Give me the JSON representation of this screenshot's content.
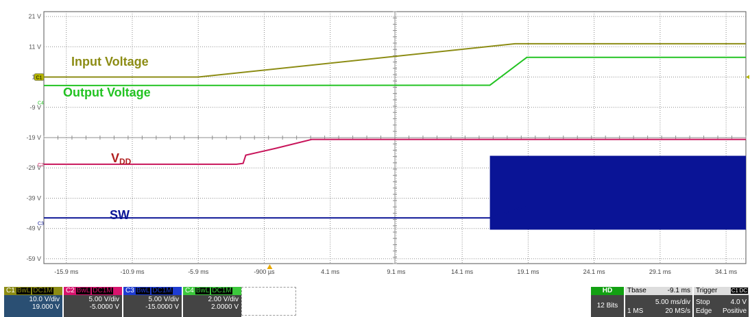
{
  "chart_data": {
    "type": "line",
    "y_ticks": [
      "21 V",
      "11 V",
      "1 V",
      "-9 V",
      "-19 V",
      "-29 V",
      "-39 V",
      "-49 V",
      "-59 V"
    ],
    "y_tick_values": [
      21,
      11,
      1,
      -9,
      -19,
      -29,
      -39,
      -49,
      -59
    ],
    "x_ticks": [
      "-15.9 ms",
      "-10.9 ms",
      "-5.9 ms",
      "-900 µs",
      "4.1 ms",
      "9.1 ms",
      "14.1 ms",
      "19.1 ms",
      "24.1 ms",
      "29.1 ms",
      "34.1 ms"
    ],
    "x_tick_values": [
      -15.9,
      -10.9,
      -5.9,
      -0.9,
      4.1,
      9.1,
      14.1,
      19.1,
      24.1,
      29.1,
      34.1
    ],
    "xlim": [
      -17.6,
      35.6
    ],
    "ylim": [
      -60.6,
      22.6
    ],
    "grid": true,
    "series": [
      {
        "name": "Input Voltage",
        "color": "#8c8c14",
        "x": [
          -17.6,
          -5.9,
          18.1,
          35.6
        ],
        "y": [
          1.0,
          1.0,
          12.0,
          12.0
        ]
      },
      {
        "name": "Output Voltage",
        "color": "#22c322",
        "x": [
          -17.6,
          16.2,
          19.0,
          35.6
        ],
        "y": [
          -1.8,
          -1.7,
          7.5,
          7.5
        ]
      },
      {
        "name": "VDD",
        "color": "#c8145a",
        "x": [
          -17.6,
          -3.0,
          -2.5,
          -2.3,
          0.0,
          2.7,
          35.6
        ],
        "y": [
          -27.8,
          -27.8,
          -27.5,
          -24.8,
          -22.5,
          -19.6,
          -19.6
        ]
      },
      {
        "name": "SW",
        "color": "#0a1496",
        "x": [
          -17.6,
          16.2,
          18.9
        ],
        "y": [
          -45.5,
          -45.5,
          -41.7
        ]
      }
    ],
    "sw_envelope": {
      "x": [
        16.2,
        35.6
      ],
      "y_high": -25.0,
      "y_low": -49.4
    },
    "annotations": [
      {
        "text": "Input Voltage",
        "color": "#8c8c14"
      },
      {
        "text": "Output Voltage",
        "color": "#22c322"
      },
      {
        "text": "V",
        "sub": "DD",
        "color": "#b01e1e"
      },
      {
        "text": "SW",
        "color": "#0a1496"
      }
    ]
  },
  "markers": {
    "c1": "C1",
    "c2": "C2",
    "c3": "C3",
    "c4": "C4"
  },
  "channels": [
    {
      "name": "C1",
      "bw": "BwL",
      "dc": "DC1M",
      "vdiv": "10.0 V/div",
      "offset": "19.000 V",
      "color": "#8c8c14",
      "bodycolor": "#2a4f73"
    },
    {
      "name": "C2",
      "bw": "BwL",
      "dc": "DC1M",
      "vdiv": "5.00 V/div",
      "offset": "-5.0000 V",
      "color": "#d8146e",
      "bodycolor": "#444444"
    },
    {
      "name": "C3",
      "bw": "BwL",
      "dc": "DC1M",
      "vdiv": "5.00 V/div",
      "offset": "-15.0000 V",
      "color": "#1e3cd2",
      "bodycolor": "#444444"
    },
    {
      "name": "C4",
      "bw": "BwL",
      "dc": "DC1M",
      "vdiv": "2.00 V/div",
      "offset": "2.0000 V",
      "color": "#3cc83c",
      "bodycolor": "#444444"
    }
  ],
  "acq": {
    "hd": "HD",
    "bits": "12 Bits"
  },
  "tbase": {
    "label": "Tbase",
    "pos": "-9.1 ms",
    "mem": "1 MS",
    "div": "5.00 ms/div",
    "rate": "20 MS/s"
  },
  "trigger": {
    "label": "Trigger",
    "ch": "C1",
    "dc": "DC",
    "mode": "Stop",
    "type": "Edge",
    "level": "4.0 V",
    "slope": "Positive"
  }
}
